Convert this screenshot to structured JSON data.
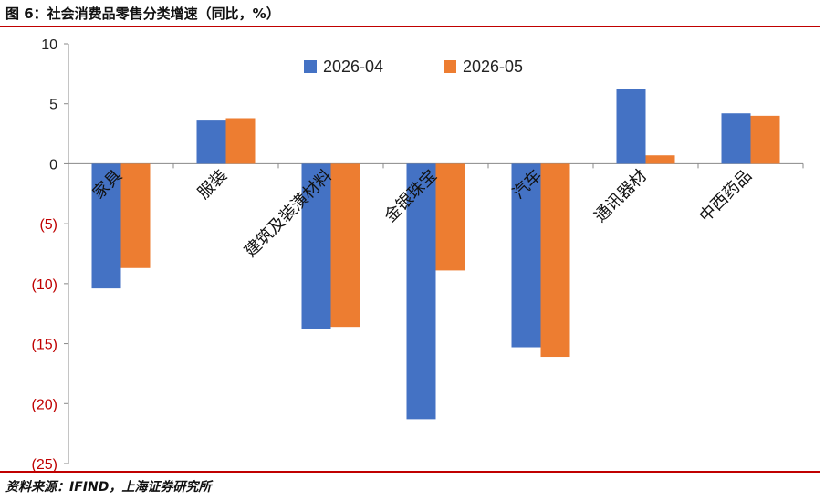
{
  "figure": {
    "title": "图 6：社会消费品零售分类增速（同比，%）",
    "source": "资料来源：IFIND，上海证券研究所"
  },
  "chart_data": {
    "type": "bar",
    "categories": [
      "家具",
      "服装",
      "建筑及装潢材料",
      "金银珠宝",
      "汽车",
      "通讯器材",
      "中西药品"
    ],
    "series": [
      {
        "name": "2026-04",
        "color": "#4472c4",
        "values": [
          -10.4,
          3.6,
          -13.8,
          -21.3,
          -15.3,
          6.2,
          4.2
        ]
      },
      {
        "name": "2026-05",
        "color": "#ed7d31",
        "values": [
          -8.7,
          3.8,
          -13.6,
          -8.9,
          -16.1,
          0.7,
          4.0
        ]
      }
    ],
    "ylim": [
      -25,
      10
    ],
    "yticks": [
      10,
      5,
      0,
      -5,
      -10,
      -15,
      -20,
      -25
    ],
    "ytick_labels": [
      "10",
      "5",
      "0",
      "(5)",
      "(10)",
      "(15)",
      "(20)",
      "(25)"
    ],
    "negative_label_color": "#c00000",
    "positive_label_color": "#222222",
    "legend_position": "top-center",
    "grid": false
  }
}
